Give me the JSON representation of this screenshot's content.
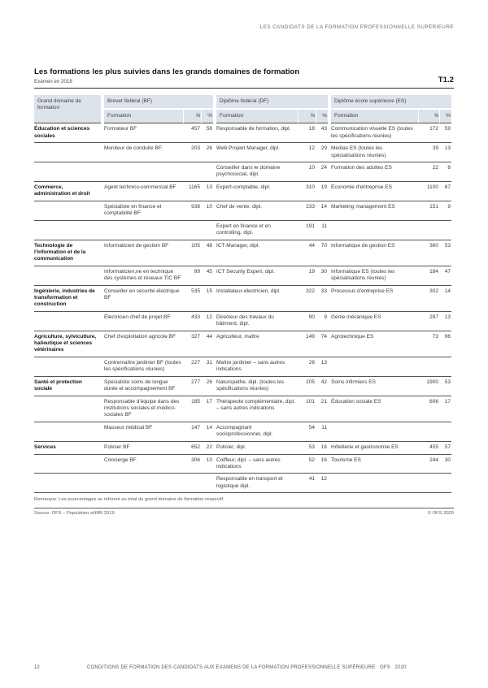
{
  "page": {
    "running_head": "LES CANDIDATS DE LA FORMATION PROFESSIONNELLE SUPÉRIEURE",
    "title": "Les formations les plus suivies dans les grands domaines de formation",
    "subtitle": "Examen en 2018",
    "table_tag": "T1.2",
    "remark": "Remarque: Les pourcentages se réfèrent au total du grand domaine de formation respectif.",
    "source": "Source: OFS – Population eHBB 2019",
    "copyright": "© OFS 2020",
    "footer_page": "12",
    "footer_text": "CONDITIONS DE FORMATION DES CANDIDATS AUX EXAMENS DE LA FORMATION PROFESSIONNELLE SUPÉRIEURE   OFS   2020"
  },
  "table": {
    "col_domain": "Grand domaine de formation",
    "groups": [
      "Brevet fédéral (BF)",
      "Diplôme fédéral (DF)",
      "Diplôme école supérieure (ES)"
    ],
    "subcols": [
      "Formation",
      "N",
      "%"
    ],
    "rows": [
      {
        "domain": "Éducation et sciences sociales",
        "bf": [
          "Formateur BF",
          "457",
          "58"
        ],
        "df": [
          "Responsable de formation, dipl.",
          "18",
          "43"
        ],
        "es": [
          "Communication visuelle ES (toutes les spécifications réunies)",
          "172",
          "59"
        ]
      },
      {
        "domain": "",
        "bf": [
          "Moniteur de conduite BF",
          "203",
          "26"
        ],
        "df": [
          "Web Projekt Manager, dipl.",
          "12",
          "29"
        ],
        "es": [
          "Médias ES (toutes les spécialisations réunies)",
          "39",
          "13"
        ]
      },
      {
        "domain": "",
        "bf": [
          "",
          "",
          ""
        ],
        "df": [
          "Conseiller dans le domaine psychosocial, dipl.",
          "10",
          "24"
        ],
        "es": [
          "Formation des adultes ES",
          "22",
          "8"
        ]
      },
      {
        "domain": "Commerce, administration et droit",
        "bf": [
          "Agent technico-commercial BF",
          "1165",
          "13"
        ],
        "df": [
          "Expert-comptable, dipl.",
          "310",
          "19"
        ],
        "es": [
          "Économie d'entreprise ES",
          "1100",
          "67"
        ]
      },
      {
        "domain": "",
        "bf": [
          "Spécialiste en finance et comptabilité BF",
          "938",
          "10"
        ],
        "df": [
          "Chef de vente, dipl.",
          "233",
          "14"
        ],
        "es": [
          "Marketing management ES",
          "151",
          "9"
        ]
      },
      {
        "domain": "",
        "bf": [
          "",
          "",
          ""
        ],
        "df": [
          "Expert en finance et en controlling, dipl.",
          "191",
          "11"
        ],
        "es": [
          "",
          "",
          ""
        ]
      },
      {
        "domain": "Technologie de l'information et de la communication",
        "bf": [
          "Informaticien de gestion BF",
          "105",
          "48"
        ],
        "df": [
          "ICT-Manager, dipl.",
          "44",
          "70"
        ],
        "es": [
          "Informatique de gestion ES",
          "360",
          "53"
        ]
      },
      {
        "domain": "",
        "bf": [
          "Informaticien,ne en technique des systèmes et réseaux TIC BF",
          "99",
          "45"
        ],
        "df": [
          "ICT Security Expert, dipl.",
          "19",
          "30"
        ],
        "es": [
          "Informatique ES (toutes les spécialisations réunies)",
          "184",
          "47"
        ]
      },
      {
        "domain": "Ingénierie, industries de transformation et construction",
        "bf": [
          "Conseiller en sécurité électrique BF",
          "535",
          "15"
        ],
        "df": [
          "Installateur-électricien, dipl.",
          "322",
          "33"
        ],
        "es": [
          "Processus d'entreprise ES",
          "302",
          "14"
        ]
      },
      {
        "domain": "",
        "bf": [
          "Électricien chef de projet BF",
          "433",
          "12"
        ],
        "df": [
          "Directeur des travaux du bâtiment, dipl.",
          "90",
          "9"
        ],
        "es": [
          "Génie mécanique ES",
          "287",
          "13"
        ]
      },
      {
        "domain": "Agriculture, sylviculture, halieutique et sciences vétérinaires",
        "bf": [
          "Chef d'exploitation agricole BF",
          "327",
          "44"
        ],
        "df": [
          "Agriculteur, maître",
          "149",
          "74"
        ],
        "es": [
          "Agrotechnique ES",
          "73",
          "96"
        ]
      },
      {
        "domain": "",
        "bf": [
          "Contremaître jardinier BF (toutes les spécifications réunies)",
          "227",
          "31"
        ],
        "df": [
          "Maître jardinier – sans autres indications",
          "26",
          "13"
        ],
        "es": [
          "",
          "",
          ""
        ]
      },
      {
        "domain": "Santé et protection sociale",
        "bf": [
          "Spécialiste soins de longue durée et accompagnement BF",
          "277",
          "26"
        ],
        "df": [
          "Naturopathe, dipl. (toutes les spécifications réunies)",
          "205",
          "42"
        ],
        "es": [
          "Soins infirmiers ES",
          "1900",
          "53"
        ]
      },
      {
        "domain": "",
        "bf": [
          "Responsable d'équipe dans des institutions sociales et médico-sociales BF",
          "185",
          "17"
        ],
        "df": [
          "Thérapeute complémentaire, dipl. – sans autres indications",
          "101",
          "21"
        ],
        "es": [
          "Éducation sociale ES",
          "606",
          "17"
        ]
      },
      {
        "domain": "",
        "bf": [
          "Masseur médical BF",
          "147",
          "14"
        ],
        "df": [
          "Accompagnant socioprofessionnel, dipl.",
          "54",
          "11"
        ],
        "es": [
          "",
          "",
          ""
        ]
      },
      {
        "domain": "Services",
        "bf": [
          "Policier BF",
          "652",
          "22"
        ],
        "df": [
          "Policier, dipl.",
          "53",
          "16"
        ],
        "es": [
          "Hôtellerie et gastronomie ES",
          "455",
          "57"
        ]
      },
      {
        "domain": "",
        "bf": [
          "Concierge BF",
          "306",
          "10"
        ],
        "df": [
          "Coiffeur, dipl. – sans autres indications",
          "52",
          "16"
        ],
        "es": [
          "Tourisme ES",
          "244",
          "30"
        ]
      },
      {
        "domain": "",
        "bf": [
          "",
          "",
          ""
        ],
        "df": [
          "Responsable en transport et logistique dipl.",
          "41",
          "12"
        ],
        "es": [
          "",
          "",
          ""
        ]
      }
    ]
  }
}
